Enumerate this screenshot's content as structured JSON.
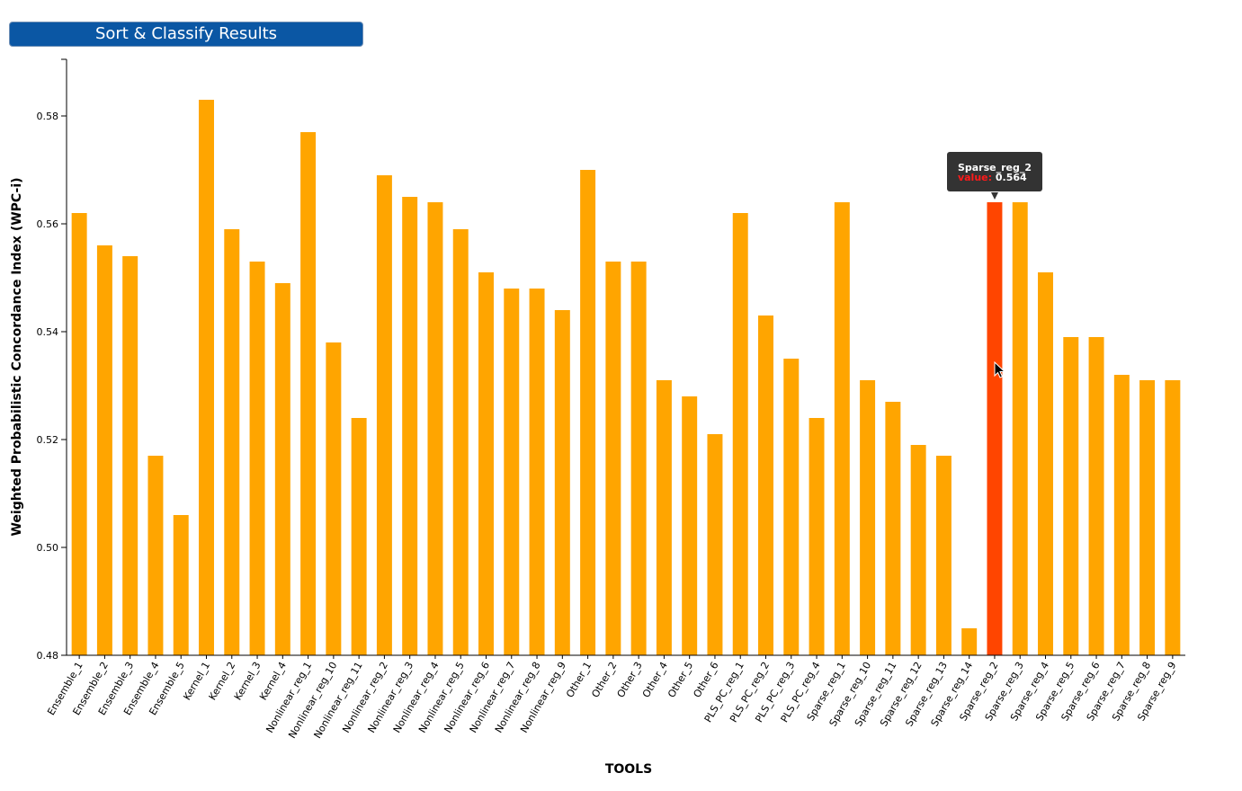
{
  "toolbar": {
    "sort_label": "Sort & Classify Results"
  },
  "tooltip": {
    "tool": "Sparse_reg_2",
    "key": "value:",
    "value": "0.564"
  },
  "colors": {
    "bar": "#ffa500",
    "bar_highlight": "#ff4500",
    "button": "#0b57a4",
    "tooltip_bg": "#333333"
  },
  "chart_data": {
    "type": "bar",
    "title": "",
    "xlabel": "TOOLS",
    "ylabel": "Weighted Probabilistic Concordance Index (WPC-i)",
    "ylim": [
      0.48,
      0.59
    ],
    "yticks": [
      "0.48",
      "0.50",
      "0.52",
      "0.54",
      "0.56",
      "0.58"
    ],
    "grid": false,
    "highlighted_category": "Sparse_reg_2",
    "categories": [
      "Ensemble_1",
      "Ensemble_2",
      "Ensemble_3",
      "Ensemble_4",
      "Ensemble_5",
      "Kernel_1",
      "Kernel_2",
      "Kernel_3",
      "Kernel_4",
      "Nonlinear_reg_1",
      "Nonlinear_reg_10",
      "Nonlinear_reg_11",
      "Nonlinear_reg_2",
      "Nonlinear_reg_3",
      "Nonlinear_reg_4",
      "Nonlinear_reg_5",
      "Nonlinear_reg_6",
      "Nonlinear_reg_7",
      "Nonlinear_reg_8",
      "Nonlinear_reg_9",
      "Other_1",
      "Other_2",
      "Other_3",
      "Other_4",
      "Other_5",
      "Other_6",
      "PLS_PC_reg_1",
      "PLS_PC_reg_2",
      "PLS_PC_reg_3",
      "PLS_PC_reg_4",
      "Sparse_reg_1",
      "Sparse_reg_10",
      "Sparse_reg_11",
      "Sparse_reg_12",
      "Sparse_reg_13",
      "Sparse_reg_14",
      "Sparse_reg_2",
      "Sparse_reg_3",
      "Sparse_reg_4",
      "Sparse_reg_5",
      "Sparse_reg_6",
      "Sparse_reg_7",
      "Sparse_reg_8",
      "Sparse_reg_9"
    ],
    "values": [
      0.562,
      0.556,
      0.554,
      0.517,
      0.506,
      0.583,
      0.559,
      0.553,
      0.549,
      0.577,
      0.538,
      0.524,
      0.569,
      0.565,
      0.564,
      0.559,
      0.551,
      0.548,
      0.548,
      0.544,
      0.57,
      0.553,
      0.553,
      0.531,
      0.528,
      0.521,
      0.562,
      0.543,
      0.535,
      0.524,
      0.564,
      0.531,
      0.527,
      0.519,
      0.517,
      0.485,
      0.564,
      0.564,
      0.551,
      0.539,
      0.539,
      0.532,
      0.531,
      0.531
    ]
  }
}
